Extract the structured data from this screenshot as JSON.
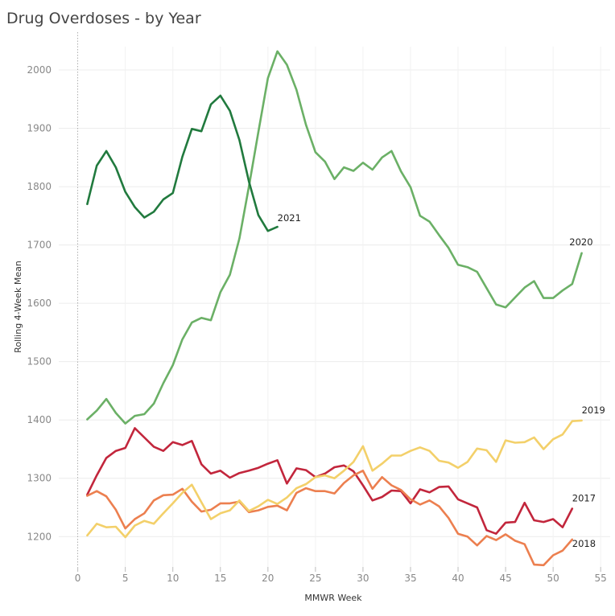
{
  "chart_data": {
    "type": "line",
    "title": "Drug Overdoses - by Year",
    "xlabel": "MMWR Week",
    "ylabel": "Rolling 4-Week Mean",
    "xlim": [
      -2,
      56
    ],
    "ylim": [
      1148,
      2040
    ],
    "x_ticks": [
      0,
      5,
      10,
      15,
      20,
      25,
      30,
      35,
      40,
      45,
      50,
      55
    ],
    "y_ticks": [
      1200,
      1300,
      1400,
      1500,
      1600,
      1700,
      1800,
      1900,
      2000
    ],
    "grid": true,
    "legend": "none (labels at line ends)",
    "series": [
      {
        "name": "2017",
        "color": "#c2263c",
        "x": [
          1,
          2,
          3,
          4,
          5,
          6,
          7,
          8,
          9,
          10,
          11,
          12,
          13,
          14,
          15,
          16,
          17,
          18,
          19,
          20,
          21,
          22,
          23,
          24,
          25,
          26,
          27,
          28,
          29,
          30,
          31,
          32,
          33,
          34,
          35,
          36,
          37,
          38,
          39,
          40,
          41,
          42,
          43,
          44,
          45,
          46,
          47,
          48,
          49,
          50,
          51,
          52
        ],
        "y": [
          1272,
          1305,
          1335,
          1347,
          1352,
          1386,
          1370,
          1354,
          1347,
          1362,
          1357,
          1364,
          1324,
          1308,
          1313,
          1301,
          1309,
          1313,
          1318,
          1325,
          1331,
          1291,
          1317,
          1314,
          1302,
          1308,
          1319,
          1322,
          1312,
          1288,
          1262,
          1268,
          1279,
          1278,
          1257,
          1281,
          1276,
          1285,
          1286,
          1264,
          1257,
          1250,
          1211,
          1205,
          1224,
          1225,
          1258,
          1228,
          1225,
          1230,
          1216,
          1248
        ]
      },
      {
        "name": "2018",
        "color": "#ec7f4f",
        "x": [
          1,
          2,
          3,
          4,
          5,
          6,
          7,
          8,
          9,
          10,
          11,
          12,
          13,
          14,
          15,
          16,
          17,
          18,
          19,
          20,
          21,
          22,
          23,
          24,
          25,
          26,
          27,
          28,
          29,
          30,
          31,
          32,
          33,
          34,
          35,
          36,
          37,
          38,
          39,
          40,
          41,
          42,
          43,
          44,
          45,
          46,
          47,
          48,
          49,
          50,
          51,
          52
        ],
        "y": [
          1270,
          1278,
          1269,
          1246,
          1214,
          1230,
          1240,
          1262,
          1271,
          1272,
          1282,
          1260,
          1243,
          1246,
          1257,
          1257,
          1260,
          1242,
          1245,
          1251,
          1253,
          1245,
          1275,
          1283,
          1278,
          1278,
          1274,
          1292,
          1305,
          1313,
          1282,
          1302,
          1288,
          1280,
          1264,
          1255,
          1262,
          1252,
          1232,
          1205,
          1200,
          1185,
          1201,
          1194,
          1204,
          1193,
          1187,
          1152,
          1151,
          1168,
          1176,
          1195
        ]
      },
      {
        "name": "2019",
        "color": "#f3d06a",
        "x": [
          1,
          2,
          3,
          4,
          5,
          6,
          7,
          8,
          9,
          10,
          11,
          12,
          13,
          14,
          15,
          16,
          17,
          18,
          19,
          20,
          21,
          22,
          23,
          24,
          25,
          26,
          27,
          28,
          29,
          30,
          31,
          32,
          33,
          34,
          35,
          36,
          37,
          38,
          39,
          40,
          41,
          42,
          43,
          44,
          45,
          46,
          47,
          48,
          49,
          50,
          51,
          52,
          53
        ],
        "y": [
          1202,
          1222,
          1216,
          1217,
          1199,
          1219,
          1227,
          1222,
          1240,
          1257,
          1275,
          1289,
          1259,
          1230,
          1240,
          1245,
          1262,
          1244,
          1252,
          1263,
          1256,
          1267,
          1283,
          1290,
          1302,
          1305,
          1300,
          1313,
          1328,
          1355,
          1313,
          1325,
          1339,
          1339,
          1347,
          1353,
          1347,
          1330,
          1327,
          1318,
          1328,
          1351,
          1348,
          1328,
          1365,
          1361,
          1362,
          1370,
          1350,
          1367,
          1375,
          1398,
          1399
        ]
      },
      {
        "name": "2020",
        "color": "#6bb066",
        "x": [
          1,
          2,
          3,
          4,
          5,
          6,
          7,
          8,
          9,
          10,
          11,
          12,
          13,
          14,
          15,
          16,
          17,
          18,
          19,
          20,
          21,
          22,
          23,
          24,
          25,
          26,
          27,
          28,
          29,
          30,
          31,
          32,
          33,
          34,
          35,
          36,
          37,
          38,
          39,
          40,
          41,
          42,
          43,
          44,
          45,
          46,
          47,
          48,
          49,
          50,
          51,
          52,
          53
        ],
        "y": [
          1401,
          1416,
          1436,
          1412,
          1394,
          1407,
          1410,
          1428,
          1463,
          1494,
          1538,
          1567,
          1575,
          1571,
          1619,
          1649,
          1711,
          1800,
          1894,
          1986,
          2032,
          2009,
          1966,
          1906,
          1859,
          1843,
          1813,
          1833,
          1827,
          1841,
          1829,
          1850,
          1861,
          1826,
          1799,
          1750,
          1740,
          1717,
          1695,
          1666,
          1662,
          1654,
          1626,
          1598,
          1593,
          1610,
          1627,
          1638,
          1609,
          1609,
          1622,
          1633,
          1686
        ]
      },
      {
        "name": "2021",
        "color": "#217a3e",
        "x": [
          1,
          2,
          3,
          4,
          5,
          6,
          7,
          8,
          9,
          10,
          11,
          12,
          13,
          14,
          15,
          16,
          17,
          18,
          19,
          20,
          21
        ],
        "y": [
          1770,
          1836,
          1861,
          1833,
          1791,
          1765,
          1747,
          1757,
          1778,
          1789,
          1851,
          1899,
          1895,
          1941,
          1956,
          1930,
          1880,
          1809,
          1751,
          1724,
          1731
        ]
      }
    ]
  }
}
